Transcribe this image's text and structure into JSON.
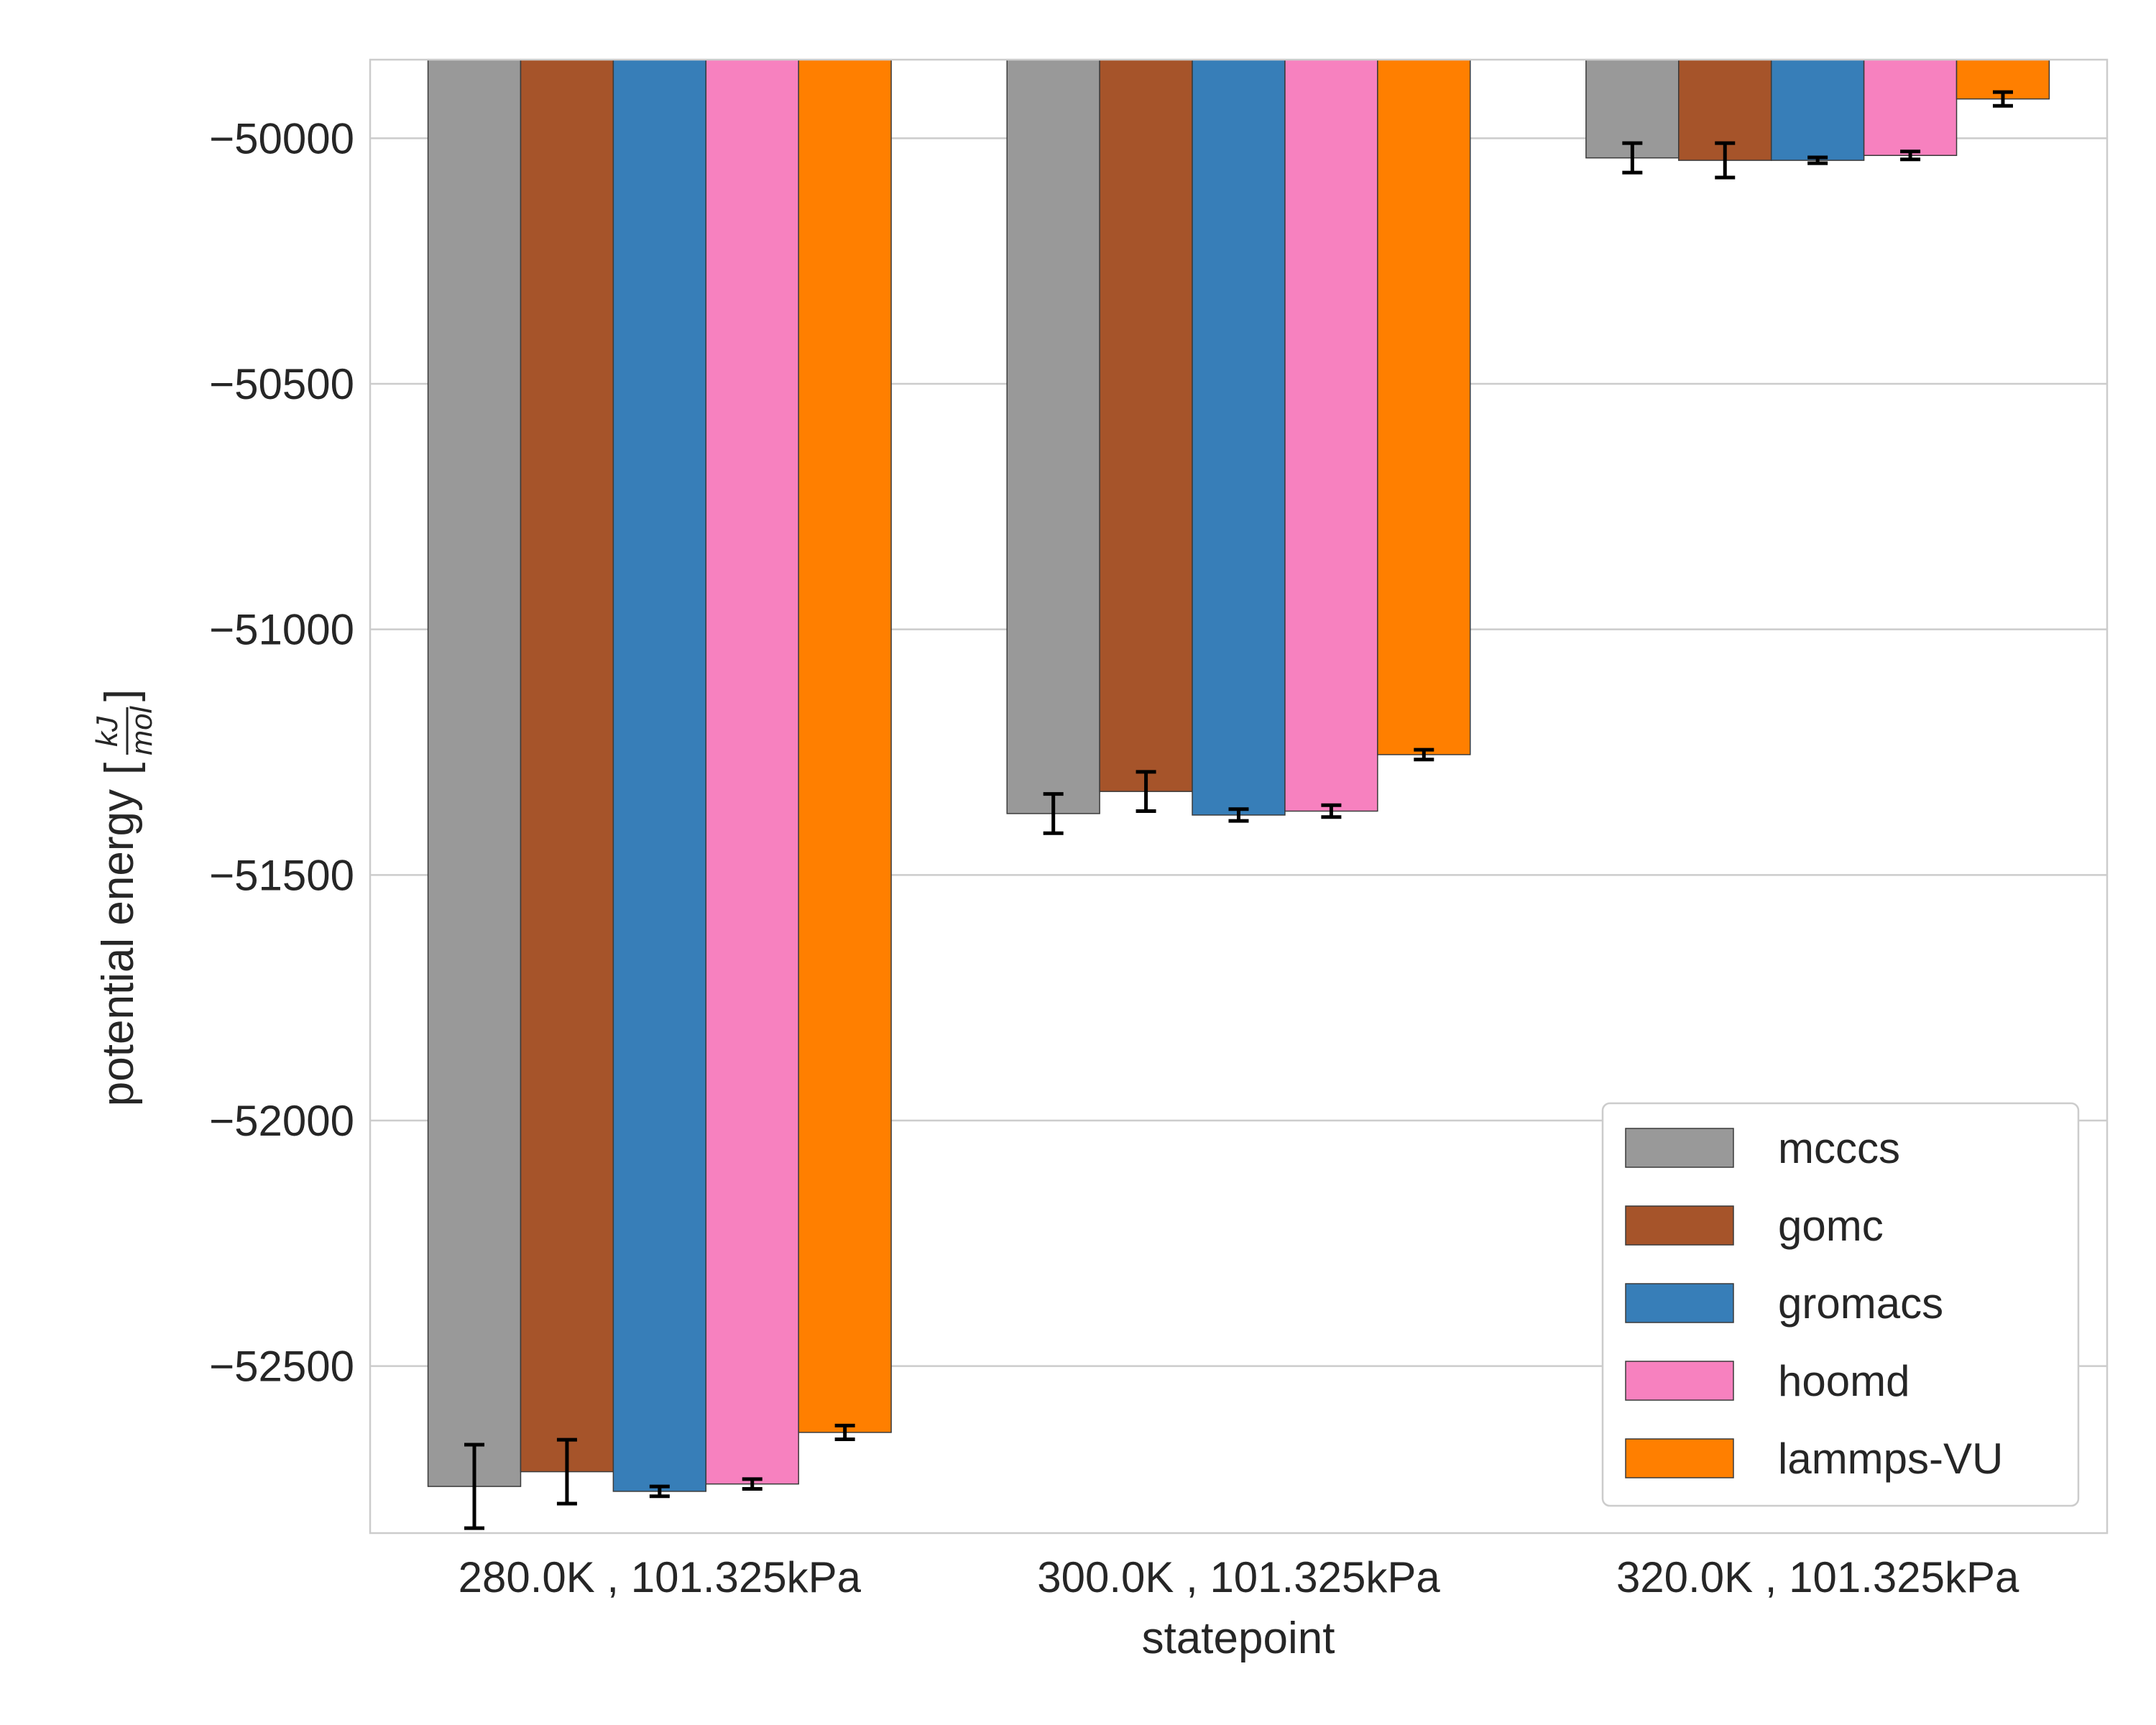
{
  "chart_data": {
    "type": "bar",
    "title": "",
    "xlabel": "statepoint",
    "ylabel": {
      "text": "potential energy",
      "unit_numerator": "kJ",
      "unit_denominator": "mol"
    },
    "categories": [
      "280.0K , 101.325kPa",
      "300.0K , 101.325kPa",
      "320.0K , 101.325kPa"
    ],
    "ylim": [
      -52840,
      -49840
    ],
    "yticks": [
      -50000,
      -50500,
      -51000,
      -51500,
      -52000,
      -52500
    ],
    "ytick_labels": [
      "−50000",
      "−50500",
      "−51000",
      "−51500",
      "−52000",
      "−52500"
    ],
    "grid": true,
    "legend_position": "lower-right",
    "series": [
      {
        "name": "mcccs",
        "color": "#999999",
        "values": [
          -52745,
          -51375,
          -50040
        ],
        "errors": [
          85,
          40,
          30
        ]
      },
      {
        "name": "gomc",
        "color": "#a6542a",
        "values": [
          -52715,
          -51330,
          -50045
        ],
        "errors": [
          65,
          40,
          35
        ]
      },
      {
        "name": "gromacs",
        "color": "#377eb8",
        "values": [
          -52755,
          -51378,
          -50045
        ],
        "errors": [
          10,
          12,
          6
        ]
      },
      {
        "name": "hoomd",
        "color": "#f781bf",
        "values": [
          -52740,
          -51370,
          -50035
        ],
        "errors": [
          10,
          12,
          8
        ]
      },
      {
        "name": "lammps-VU",
        "color": "#ff7f00",
        "values": [
          -52635,
          -51255,
          -49920
        ],
        "errors": [
          14,
          10,
          14
        ]
      }
    ]
  }
}
